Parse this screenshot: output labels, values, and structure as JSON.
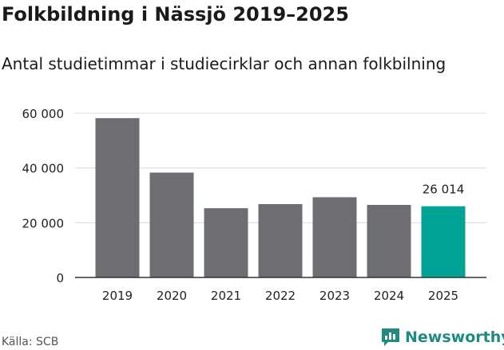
{
  "chart_data": {
    "type": "bar",
    "title": "Folkbildning i Nässjö 2019–2025",
    "subtitle": "Antal studietimmar i studiecirklar och annan folkbilning",
    "categories": [
      "2019",
      "2020",
      "2021",
      "2022",
      "2023",
      "2024",
      "2025"
    ],
    "values": [
      58200,
      38300,
      25300,
      26800,
      29300,
      26500,
      26014
    ],
    "highlight_index": 6,
    "data_labels": [
      {
        "index": 6,
        "text": "26 014"
      }
    ],
    "yticks": [
      0,
      20000,
      40000,
      60000
    ],
    "ytick_labels": [
      "0",
      "20 000",
      "40 000",
      "60 000"
    ],
    "ylim": [
      0,
      60000
    ],
    "xlabel": "",
    "ylabel": "",
    "grid": true,
    "colors": {
      "bar": "#6e6d72",
      "highlight": "#00a394",
      "grid": "#d9d9d9",
      "axis": "#333333"
    }
  },
  "source": "Källa: SCB",
  "brand": {
    "name": "Newsworthy",
    "icon": "newsworthy-logo-icon",
    "color": "#1e8a80"
  }
}
